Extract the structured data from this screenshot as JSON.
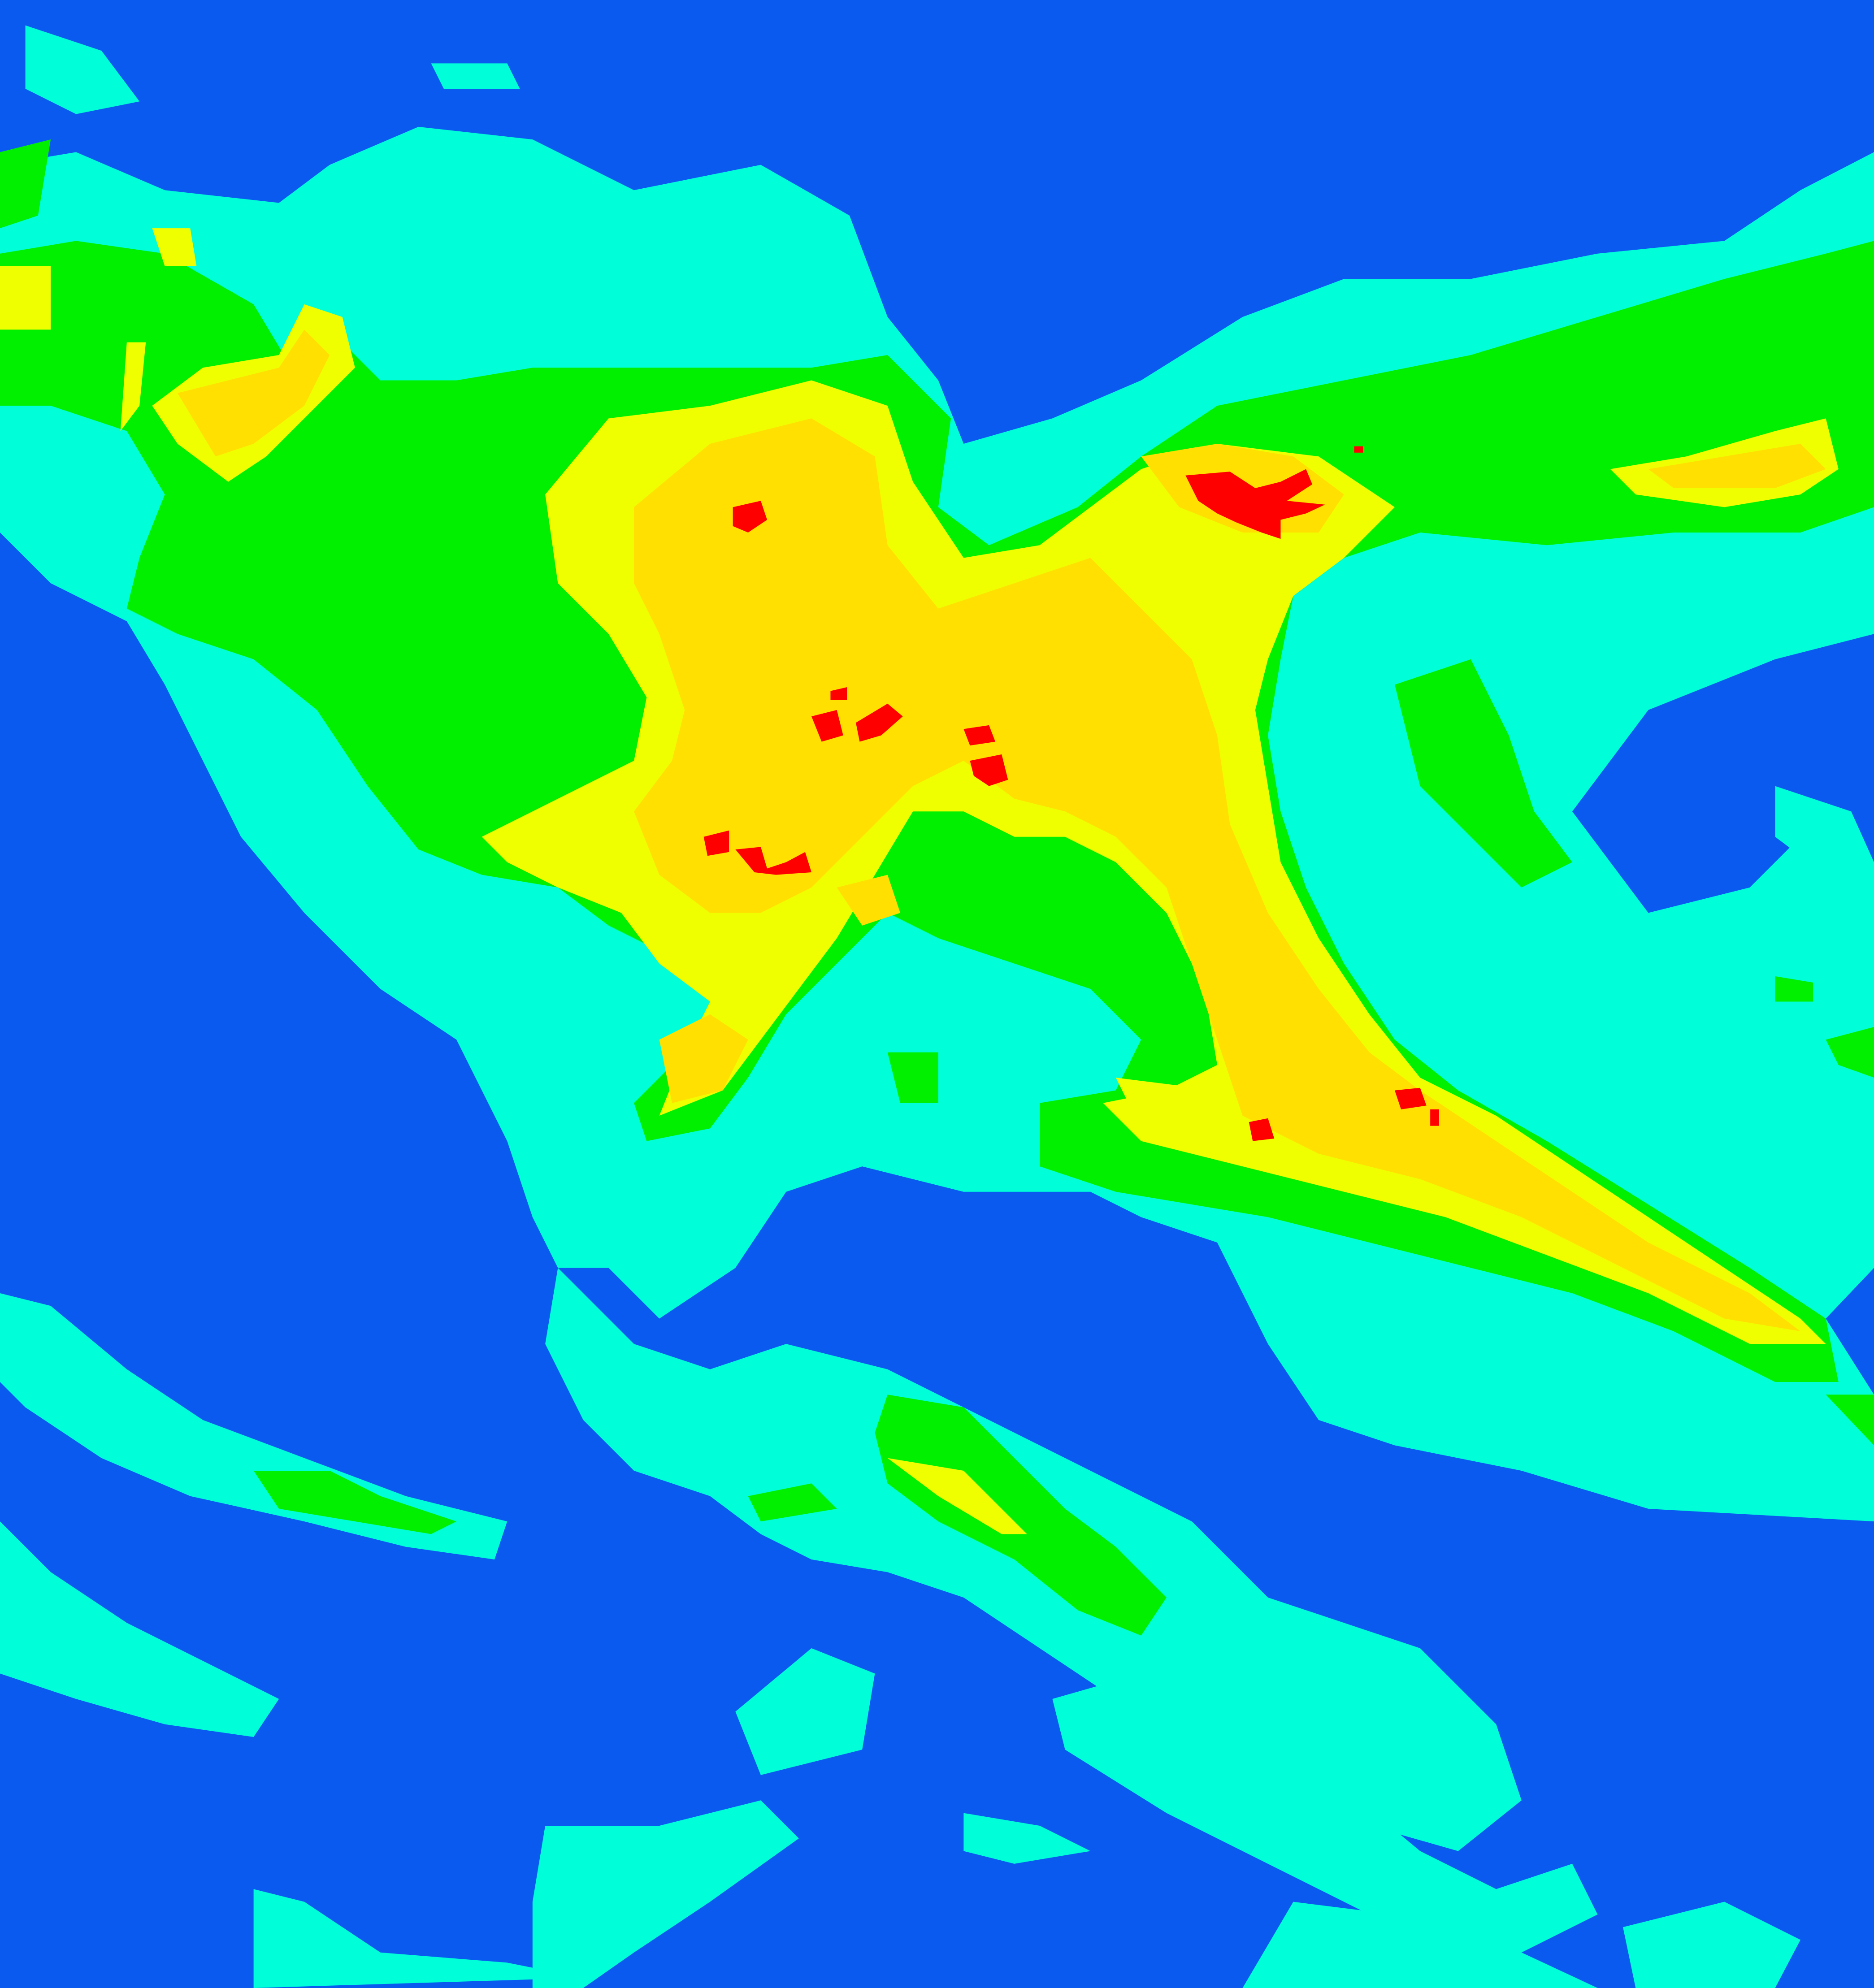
{
  "map": {
    "type": "classified-raster",
    "classes": [
      {
        "color": "#0a5af0"
      },
      {
        "color": "#00ffd8"
      },
      {
        "color": "#00f000"
      },
      {
        "color": "#f0ff00"
      },
      {
        "color": "#ffe000"
      },
      {
        "color": "#ff0000"
      }
    ]
  }
}
